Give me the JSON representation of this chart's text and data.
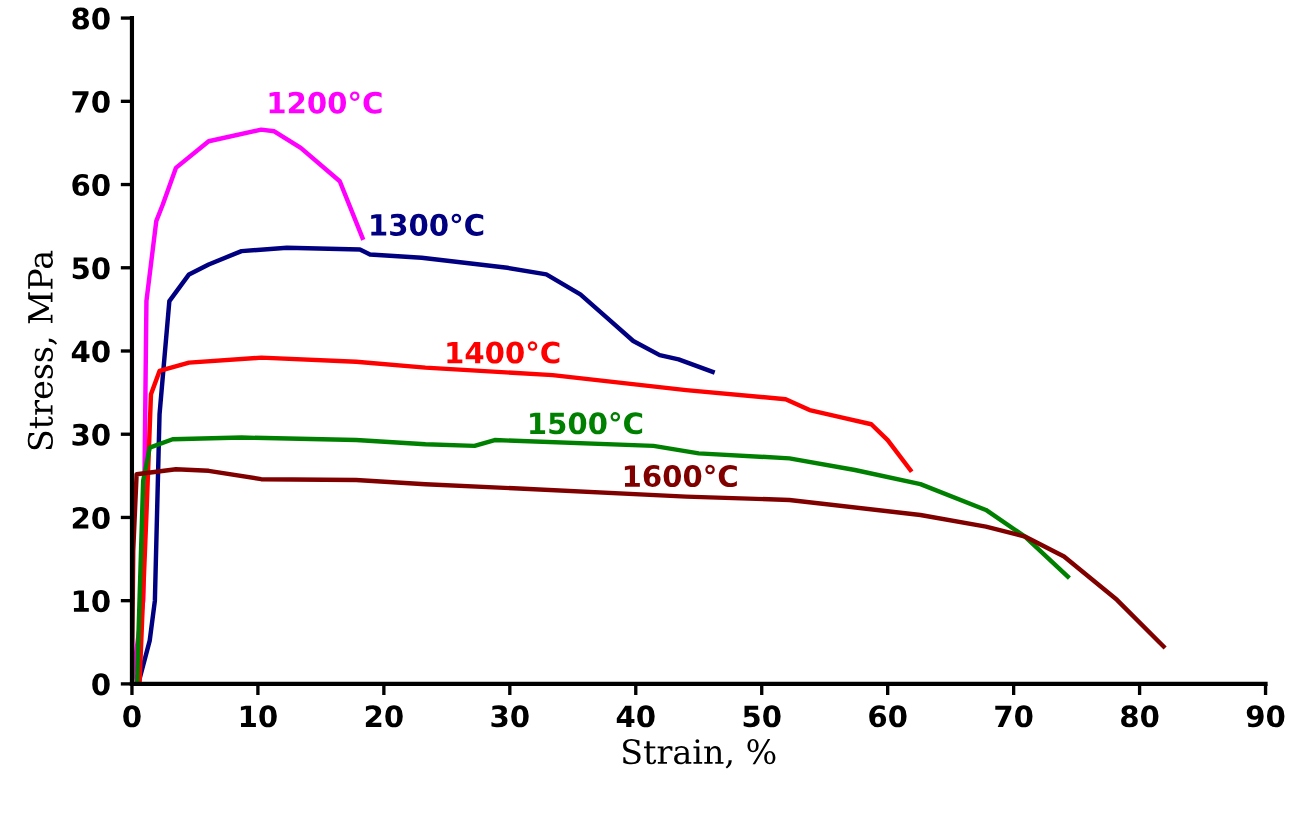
{
  "chart_data": {
    "type": "line",
    "xlabel": "Strain, %",
    "ylabel": "Stress, MPa",
    "xlim": [
      0,
      90
    ],
    "ylim": [
      0,
      80
    ],
    "xticks": [
      0,
      10,
      20,
      30,
      40,
      50,
      60,
      70,
      80,
      90
    ],
    "yticks": [
      0,
      10,
      20,
      30,
      40,
      50,
      60,
      70,
      80
    ],
    "grid": false,
    "marker": "none",
    "line_style": "solid",
    "series": [
      {
        "name": "1200°C",
        "color": "#ff00ff",
        "x": [
          0.0,
          0.89,
          1.15,
          1.93,
          2.45,
          3.49,
          6.09,
          10.26,
          11.3,
          13.4,
          16.5,
          18.3
        ],
        "values": [
          0,
          10,
          46,
          55.6,
          57.6,
          62,
          65.2,
          66.6,
          66.4,
          64.4,
          60.4,
          53.6
        ]
      },
      {
        "name": "1300°C",
        "color": "#000080",
        "x": [
          0.5,
          1.41,
          1.82,
          2.19,
          2.97,
          4.53,
          6.09,
          8.7,
          12.3,
          18.1,
          18.9,
          23.0,
          29.8,
          32.9,
          35.6,
          37.7,
          39.8,
          41.9,
          43.4,
          46.1
        ],
        "values": [
          0,
          5.2,
          10,
          32.4,
          46,
          49.2,
          50.4,
          52,
          52.4,
          52.2,
          51.6,
          51.2,
          50,
          49.2,
          46.8,
          44,
          41.2,
          39.5,
          39,
          37.5
        ]
      },
      {
        "name": "1400°C",
        "color": "#ff0000",
        "x": [
          0.6,
          1.15,
          1.51,
          2.19,
          4.53,
          10.26,
          17.8,
          23.3,
          33.4,
          44.0,
          51.9,
          53.8,
          56.4,
          58.7,
          60.0,
          61.8
        ],
        "values": [
          0,
          20.4,
          34.8,
          37.6,
          38.6,
          39.2,
          38.7,
          38,
          37.1,
          35.3,
          34.2,
          32.9,
          32,
          31.2,
          29.3,
          25.7
        ]
      },
      {
        "name": "1500°C",
        "color": "#008000",
        "x": [
          0.4,
          0.89,
          1.41,
          3.23,
          8.7,
          17.8,
          23.3,
          27.2,
          28.8,
          41.4,
          45.0,
          52.2,
          57.4,
          62.6,
          67.8,
          70.9,
          74.3
        ],
        "values": [
          0,
          24.4,
          28.4,
          29.4,
          29.6,
          29.3,
          28.8,
          28.6,
          29.3,
          28.6,
          27.7,
          27.1,
          25.7,
          24,
          20.9,
          17.7,
          12.9
        ]
      },
      {
        "name": "1600°C",
        "color": "#800000",
        "x": [
          0.0,
          0.1,
          0.37,
          3.49,
          6.09,
          10.26,
          17.8,
          23.3,
          30.3,
          44.0,
          52.2,
          62.6,
          67.8,
          70.9,
          74.0,
          78.2,
          81.9
        ],
        "values": [
          0,
          16,
          25.2,
          25.8,
          25.6,
          24.6,
          24.5,
          24,
          23.5,
          22.5,
          22.1,
          20.3,
          18.9,
          17.7,
          15.3,
          10.1,
          4.5
        ]
      }
    ]
  }
}
